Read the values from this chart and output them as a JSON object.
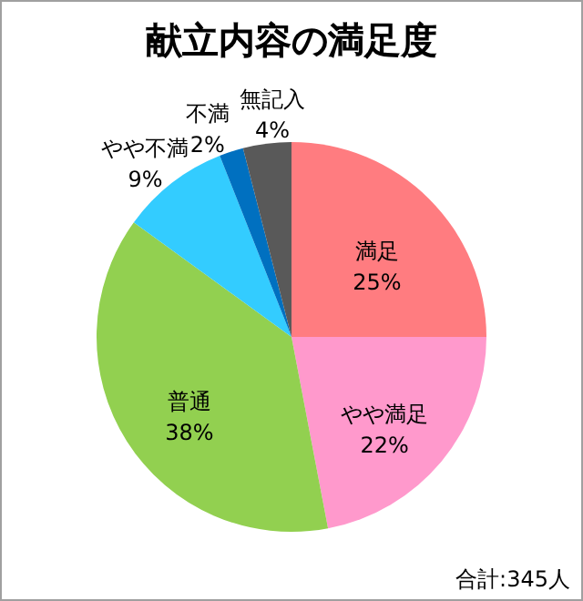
{
  "chart_data": {
    "type": "pie",
    "title": "献立内容の満足度",
    "categories": [
      "満足",
      "やや満足",
      "普通",
      "やや不満",
      "不満",
      "無記入"
    ],
    "values": [
      25,
      22,
      38,
      9,
      2,
      4
    ],
    "value_labels": [
      "25%",
      "22%",
      "38%",
      "9%",
      "2%",
      "4%"
    ],
    "colors": [
      "#ff7c80",
      "#ff99cc",
      "#92d050",
      "#33ccff",
      "#0070c0",
      "#595959"
    ],
    "legend": false,
    "annotations": [
      "合計:345人"
    ]
  }
}
